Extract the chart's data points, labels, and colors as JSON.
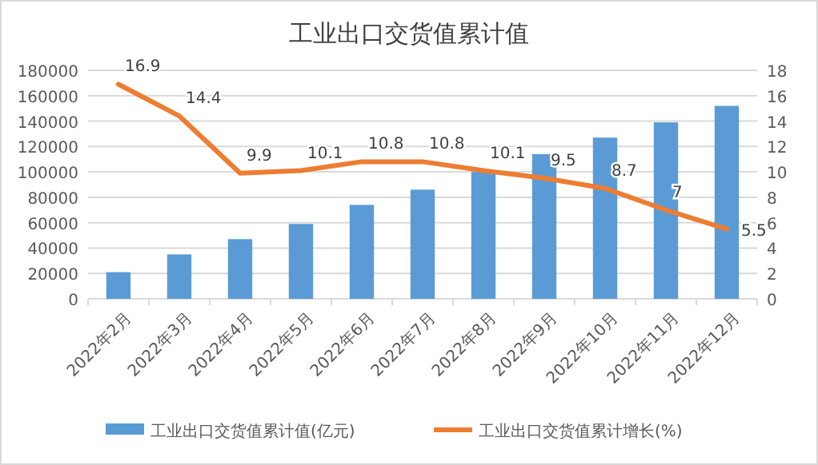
{
  "chart_data": {
    "type": "bar",
    "title": "工业出口交货值累计值",
    "categories": [
      "2022年2月",
      "2022年3月",
      "2022年4月",
      "2022年5月",
      "2022年6月",
      "2022年7月",
      "2022年8月",
      "2022年9月",
      "2022年10月",
      "2022年11月",
      "2022年12月"
    ],
    "series": [
      {
        "name": "工业出口交货值累计值(亿元)",
        "color": "#5b9bd5",
        "values": [
          21000,
          35000,
          47000,
          59000,
          74000,
          86000,
          100000,
          114000,
          127000,
          139000,
          152000
        ]
      },
      {
        "name": "工业出口交货值累计增长(%)",
        "type": "line",
        "axis": "y2",
        "color": "#ed7d31",
        "values": [
          16.9,
          14.4,
          9.9,
          10.1,
          10.8,
          10.8,
          10.1,
          9.5,
          8.7,
          7,
          5.5
        ],
        "data_labels": true
      }
    ],
    "ylim": [
      0,
      180000
    ],
    "yticks": [
      0,
      20000,
      40000,
      60000,
      80000,
      100000,
      120000,
      140000,
      160000,
      180000
    ],
    "y2lim": [
      0,
      18
    ],
    "y2ticks": [
      0,
      2,
      4,
      6,
      8,
      10,
      12,
      14,
      16,
      18
    ],
    "grid": "y",
    "legend": "bottom"
  }
}
